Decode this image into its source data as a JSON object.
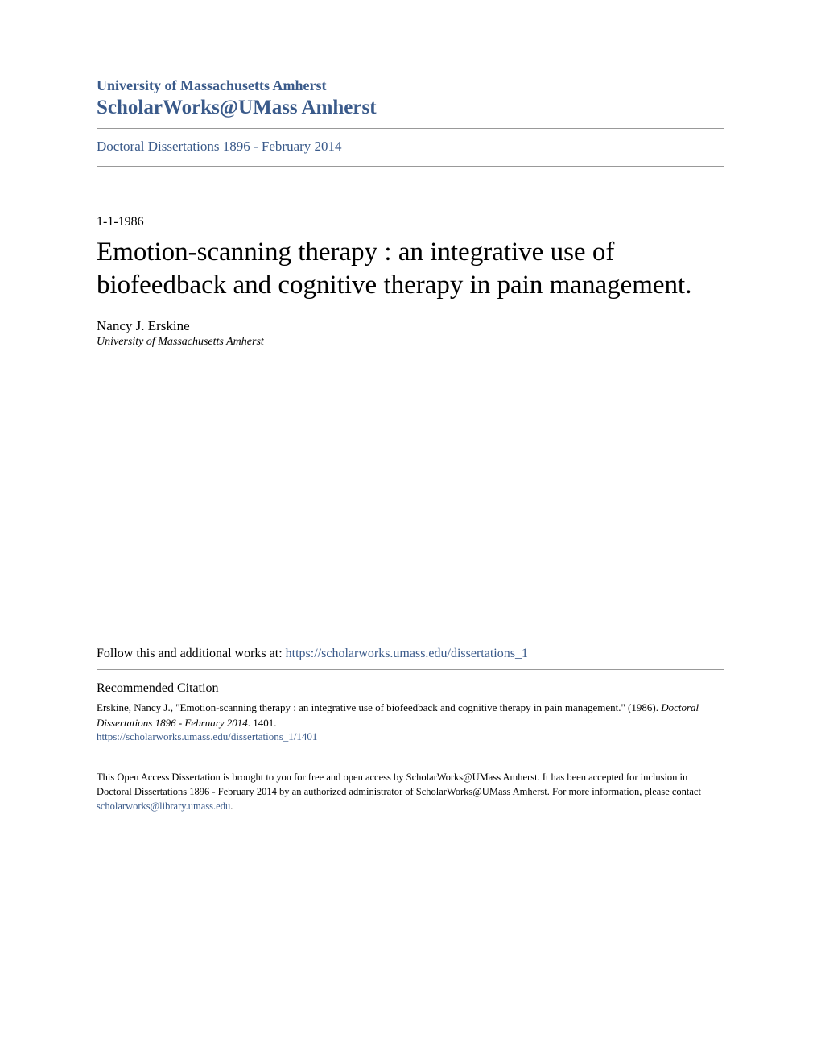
{
  "header": {
    "university_name": "University of Massachusetts Amherst",
    "repository_name": "ScholarWorks@UMass Amherst",
    "collection_name": "Doctoral Dissertations 1896 - February 2014"
  },
  "document": {
    "date": "1-1-1986",
    "title": "Emotion-scanning therapy : an integrative use of biofeedback and cognitive therapy in pain management.",
    "author_name": "Nancy J. Erskine",
    "author_affiliation": "University of Massachusetts Amherst"
  },
  "follow": {
    "prefix_text": "Follow this and additional works at: ",
    "link_text": "https://scholarworks.umass.edu/dissertations_1"
  },
  "citation": {
    "heading": "Recommended Citation",
    "text_part1": "Erskine, Nancy J., \"Emotion-scanning therapy : an integrative use of biofeedback and cognitive therapy in pain management.\" (1986). ",
    "collection_italic": "Doctoral Dissertations 1896 - February 2014",
    "text_part2": ". 1401.",
    "link_text": "https://scholarworks.umass.edu/dissertations_1/1401"
  },
  "footer": {
    "text_part1": "This Open Access Dissertation is brought to you for free and open access by ScholarWorks@UMass Amherst. It has been accepted for inclusion in Doctoral Dissertations 1896 - February 2014 by an authorized administrator of ScholarWorks@UMass Amherst. For more information, please contact ",
    "link_text": "scholarworks@library.umass.edu",
    "text_part2": "."
  },
  "colors": {
    "link_color": "#3a5a8a",
    "text_color": "#000000",
    "background": "#ffffff",
    "border_color": "#999999"
  }
}
